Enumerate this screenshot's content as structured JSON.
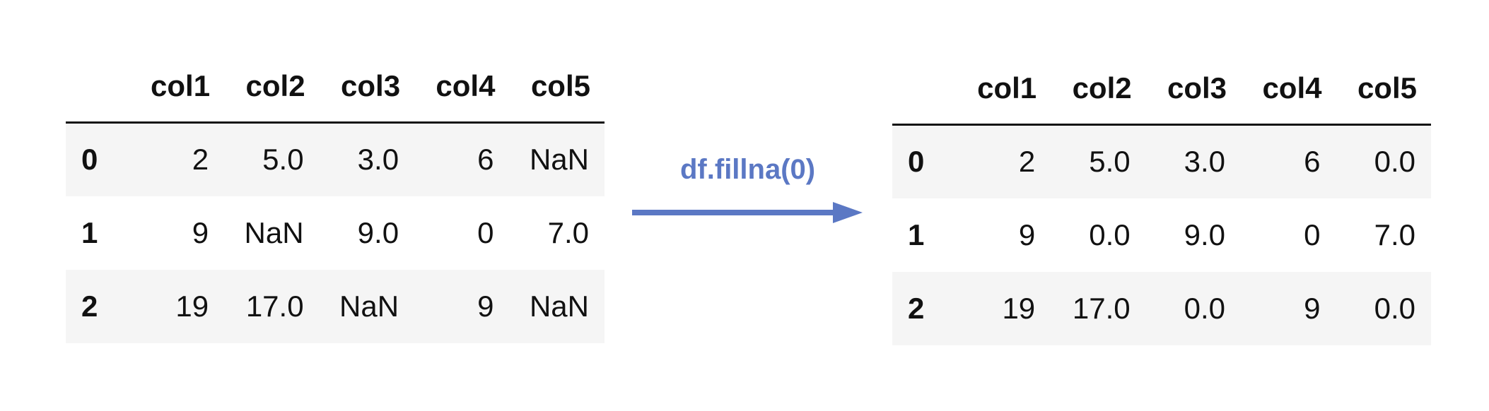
{
  "operation": {
    "label": "df.fillna(0)",
    "color": "#5b78c4"
  },
  "columns": [
    "col1",
    "col2",
    "col3",
    "col4",
    "col5"
  ],
  "before": {
    "rows": [
      {
        "index": "0",
        "cells": [
          "2",
          "5.0",
          "3.0",
          "6",
          "NaN"
        ]
      },
      {
        "index": "1",
        "cells": [
          "9",
          "NaN",
          "9.0",
          "0",
          "7.0"
        ]
      },
      {
        "index": "2",
        "cells": [
          "19",
          "17.0",
          "NaN",
          "9",
          "NaN"
        ]
      }
    ]
  },
  "after": {
    "rows": [
      {
        "index": "0",
        "cells": [
          "2",
          "5.0",
          "3.0",
          "6",
          "0.0"
        ]
      },
      {
        "index": "1",
        "cells": [
          "9",
          "0.0",
          "9.0",
          "0",
          "7.0"
        ]
      },
      {
        "index": "2",
        "cells": [
          "19",
          "17.0",
          "0.0",
          "9",
          "0.0"
        ]
      }
    ]
  }
}
